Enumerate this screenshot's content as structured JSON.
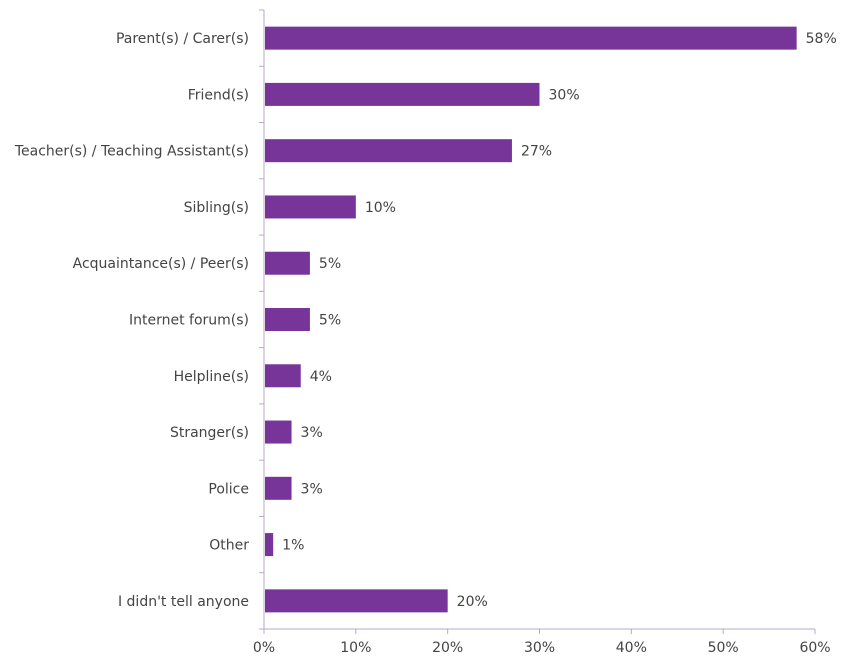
{
  "chart_data": {
    "type": "bar",
    "orientation": "horizontal",
    "categories": [
      "Parent(s) / Carer(s)",
      "Friend(s)",
      "Teacher(s) / Teaching Assistant(s)",
      "Sibling(s)",
      "Acquaintance(s) / Peer(s)",
      "Internet forum(s)",
      "Helpline(s)",
      "Stranger(s)",
      "Police",
      "Other",
      "I didn't tell anyone"
    ],
    "values": [
      58,
      30,
      27,
      10,
      5,
      5,
      4,
      3,
      3,
      1,
      20
    ],
    "value_labels": [
      "58%",
      "30%",
      "27%",
      "10%",
      "5%",
      "5%",
      "4%",
      "3%",
      "3%",
      "1%",
      "20%"
    ],
    "xlim": [
      0,
      60
    ],
    "xticks": [
      0,
      10,
      20,
      30,
      40,
      50,
      60
    ],
    "xtick_labels": [
      "0%",
      "10%",
      "20%",
      "30%",
      "40%",
      "50%",
      "60%"
    ],
    "bar_color": "#77359a",
    "axis_color": "#b9a8c4",
    "grid": false,
    "legend": "none"
  }
}
